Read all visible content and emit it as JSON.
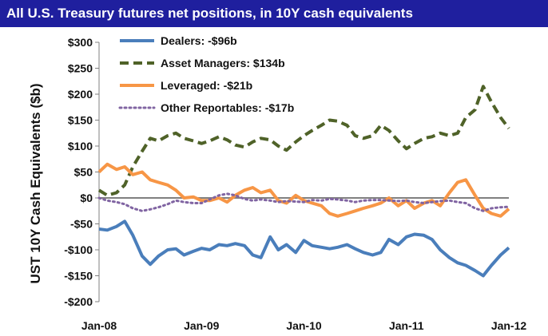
{
  "title": "All U.S. Treasury futures net positions, in 10Y cash equivalents",
  "chart_data": {
    "type": "line",
    "title": "All U.S. Treasury futures net positions, in 10Y cash equivalents",
    "xlabel": "",
    "ylabel": "UST 10Y Cash Equivalents ($b)",
    "ylim": [
      -200,
      300
    ],
    "y_ticks": [
      300,
      250,
      200,
      150,
      100,
      50,
      0,
      -50,
      -100,
      -150,
      -200
    ],
    "y_tick_labels": [
      "$300",
      "$250",
      "$200",
      "$150",
      "$100",
      "$50",
      "$0",
      "-$50",
      "-$100",
      "-$150",
      "-$200"
    ],
    "x_range": [
      2008.0,
      2012.0
    ],
    "x_ticks": [
      2008,
      2009,
      2010,
      2011,
      2012
    ],
    "x_tick_labels": [
      "Jan-08",
      "Jan-09",
      "Jan-10",
      "Jan-11",
      "Jan-12"
    ],
    "zero_line": true,
    "legend_position": "top-left",
    "x": [
      2008.0,
      2008.08,
      2008.17,
      2008.25,
      2008.33,
      2008.42,
      2008.5,
      2008.58,
      2008.67,
      2008.75,
      2008.83,
      2008.92,
      2009.0,
      2009.08,
      2009.17,
      2009.25,
      2009.33,
      2009.42,
      2009.5,
      2009.58,
      2009.67,
      2009.75,
      2009.83,
      2009.92,
      2010.0,
      2010.08,
      2010.17,
      2010.25,
      2010.33,
      2010.42,
      2010.5,
      2010.58,
      2010.67,
      2010.75,
      2010.83,
      2010.92,
      2011.0,
      2011.08,
      2011.17,
      2011.25,
      2011.33,
      2011.42,
      2011.5,
      2011.58,
      2011.67,
      2011.75,
      2011.83,
      2011.92,
      2012.0
    ],
    "series": [
      {
        "name": "Dealers",
        "legend_label": "Dealers: -$96b",
        "color": "#4a7ebb",
        "dash": "solid",
        "values": [
          -60,
          -62,
          -55,
          -45,
          -72,
          -112,
          -128,
          -112,
          -100,
          -98,
          -110,
          -103,
          -97,
          -100,
          -90,
          -92,
          -88,
          -92,
          -110,
          -115,
          -75,
          -100,
          -90,
          -105,
          -82,
          -92,
          -95,
          -98,
          -95,
          -90,
          -98,
          -105,
          -110,
          -105,
          -80,
          -90,
          -75,
          -70,
          -72,
          -80,
          -100,
          -115,
          -125,
          -130,
          -140,
          -150,
          -130,
          -110,
          -96
        ]
      },
      {
        "name": "Asset Managers",
        "legend_label": "Asset Managers: $134b",
        "color": "#4f6228",
        "dash": "dashed",
        "values": [
          15,
          5,
          10,
          25,
          60,
          90,
          115,
          110,
          120,
          125,
          115,
          110,
          105,
          110,
          118,
          112,
          102,
          98,
          108,
          115,
          112,
          100,
          92,
          108,
          120,
          130,
          140,
          150,
          148,
          140,
          120,
          115,
          120,
          140,
          130,
          110,
          95,
          105,
          115,
          118,
          125,
          120,
          125,
          155,
          170,
          215,
          185,
          155,
          134
        ]
      },
      {
        "name": "Leveraged",
        "legend_label": "Leveraged: -$21b",
        "color": "#f79646",
        "dash": "solid",
        "values": [
          50,
          65,
          55,
          60,
          45,
          50,
          35,
          30,
          25,
          15,
          0,
          2,
          -5,
          -5,
          0,
          -8,
          5,
          15,
          20,
          10,
          15,
          -5,
          -10,
          5,
          -5,
          -10,
          -15,
          -30,
          -35,
          -30,
          -25,
          -20,
          -15,
          -10,
          0,
          -15,
          -5,
          -20,
          -10,
          -5,
          -15,
          10,
          30,
          35,
          5,
          -20,
          -30,
          -35,
          -21
        ]
      },
      {
        "name": "Other Reportables",
        "legend_label": "Other Reportables: -$17b",
        "color": "#8064a2",
        "dash": "dotted",
        "values": [
          0,
          -5,
          -8,
          -12,
          -20,
          -25,
          -22,
          -18,
          -12,
          -5,
          -8,
          -10,
          -10,
          -3,
          5,
          8,
          5,
          -2,
          -5,
          -3,
          -5,
          -8,
          -6,
          -7,
          -8,
          -4,
          -5,
          -2,
          -3,
          -5,
          -8,
          -5,
          -4,
          -4,
          -5,
          -6,
          -5,
          -8,
          -10,
          -8,
          -6,
          -5,
          -8,
          -10,
          -20,
          -25,
          -20,
          -18,
          -17
        ]
      }
    ]
  }
}
